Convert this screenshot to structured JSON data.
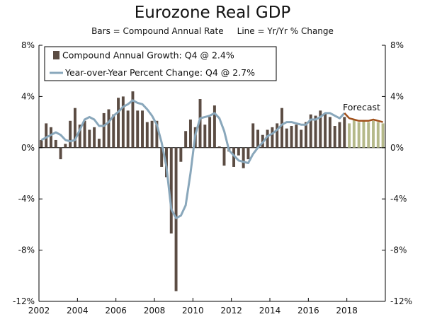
{
  "chart_data": {
    "type": "bar+line",
    "title": "Eurozone Real GDP",
    "subtitle": "Bars = Compound Annual Rate     Line = Yr/Yr % Change",
    "ylim": [
      -12,
      8
    ],
    "y_ticks": [
      "8%",
      "4%",
      "0%",
      "-4%",
      "-8%",
      "-12%"
    ],
    "y_tick_values": [
      8,
      4,
      0,
      -4,
      -8,
      -12
    ],
    "x_ticks": [
      "2002",
      "2004",
      "2006",
      "2008",
      "2010",
      "2012",
      "2014",
      "2016",
      "2018"
    ],
    "x_tick_values": [
      2002,
      2004,
      2006,
      2008,
      2010,
      2012,
      2014,
      2016,
      2018
    ],
    "x_range": [
      2002,
      2020
    ],
    "legend": {
      "bars": "Compound Annual Growth: Q4 @ 2.4%",
      "line": "Year-over-Year Percent Change: Q4 @ 2.7%"
    },
    "annotation": "Forecast",
    "colors": {
      "bar": "#5b4c43",
      "forecast_bar": "#b5b98a",
      "line": "#89a7bb",
      "forecast_line": "#a0501b",
      "axis": "#000000"
    },
    "quarters_start": 2002.0,
    "forecast_start_index": 64,
    "bars": [
      0.6,
      1.9,
      1.6,
      0.6,
      -0.9,
      0.3,
      2.1,
      3.1,
      1.8,
      2.1,
      1.4,
      1.6,
      0.7,
      2.7,
      3.0,
      2.6,
      3.9,
      4.0,
      2.9,
      4.4,
      2.9,
      2.9,
      2.0,
      2.1,
      2.1,
      -1.5,
      -2.3,
      -6.7,
      -11.2,
      -1.1,
      1.3,
      2.2,
      1.6,
      3.8,
      1.8,
      2.4,
      3.3,
      0.1,
      -1.4,
      -0.3,
      -1.5,
      -0.6,
      -1.6,
      -0.9,
      1.9,
      1.4,
      1.0,
      1.4,
      1.6,
      1.9,
      3.1,
      1.5,
      1.7,
      1.8,
      1.4,
      2.0,
      2.6,
      2.5,
      2.9,
      2.7,
      2.4,
      1.7,
      2.0,
      2.4,
      1.9,
      2.2,
      2.0,
      2.1,
      2.0,
      2.1,
      2.0,
      1.9
    ],
    "yoy": [
      0.6,
      0.8,
      1.0,
      1.2,
      1.0,
      0.6,
      0.5,
      0.6,
      1.4,
      2.2,
      2.4,
      2.2,
      1.7,
      1.7,
      2.0,
      2.5,
      2.8,
      3.2,
      3.4,
      3.7,
      3.5,
      3.4,
      3.0,
      2.5,
      1.8,
      0.4,
      -1.5,
      -4.8,
      -5.5,
      -5.3,
      -4.5,
      -2.0,
      1.0,
      2.3,
      2.4,
      2.5,
      2.7,
      2.3,
      1.3,
      -0.2,
      -0.6,
      -1.0,
      -1.1,
      -1.2,
      -0.5,
      0.0,
      0.4,
      0.9,
      1.1,
      1.4,
      1.8,
      2.0,
      2.0,
      1.9,
      1.8,
      1.8,
      2.2,
      2.2,
      2.4,
      2.7,
      2.7,
      2.5,
      2.3,
      2.7,
      2.3,
      2.2,
      2.1,
      2.1,
      2.1,
      2.2,
      2.1,
      2.0
    ]
  }
}
